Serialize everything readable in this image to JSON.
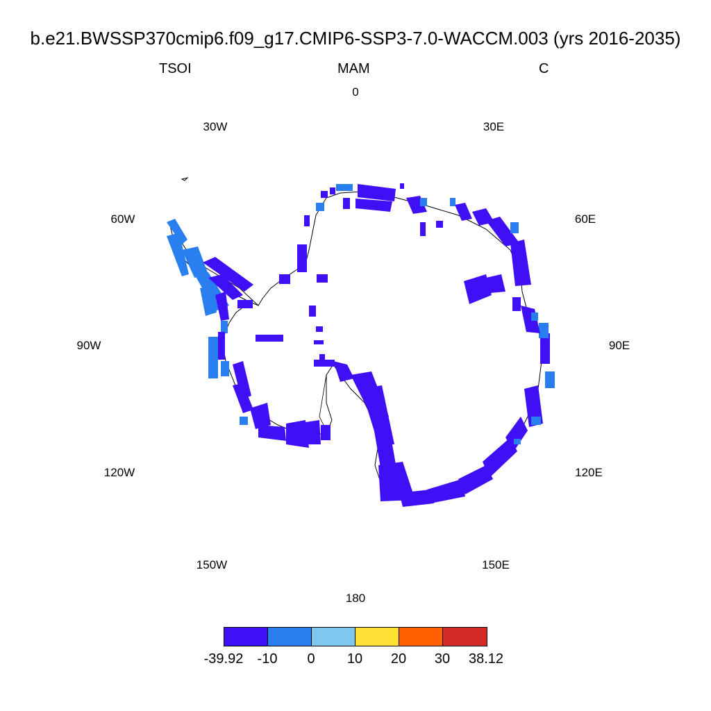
{
  "title": "b.e21.BWSSP370cmip6.f09_g17.CMIP6-SSP3-7.0-WACCM.003 (yrs 2016-2035)",
  "variable": "TSOI",
  "season": "MAM",
  "units": "C",
  "longitude_labels": [
    "0",
    "30E",
    "60E",
    "90E",
    "120E",
    "150E",
    "180",
    "150W",
    "120W",
    "90W",
    "60W",
    "30W"
  ],
  "colorbar": {
    "labels": [
      "-39.92",
      "-10",
      "0",
      "10",
      "20",
      "30",
      "38.12"
    ],
    "colors": [
      "#3f0ff5",
      "#2a7ff0",
      "#7ec8f0",
      "#ffe135",
      "#ff5f00",
      "#d62a2a"
    ]
  },
  "colors": {
    "deep_cold": "#3f0ff5",
    "cold": "#2a7ff0",
    "coastline": "#000000"
  }
}
